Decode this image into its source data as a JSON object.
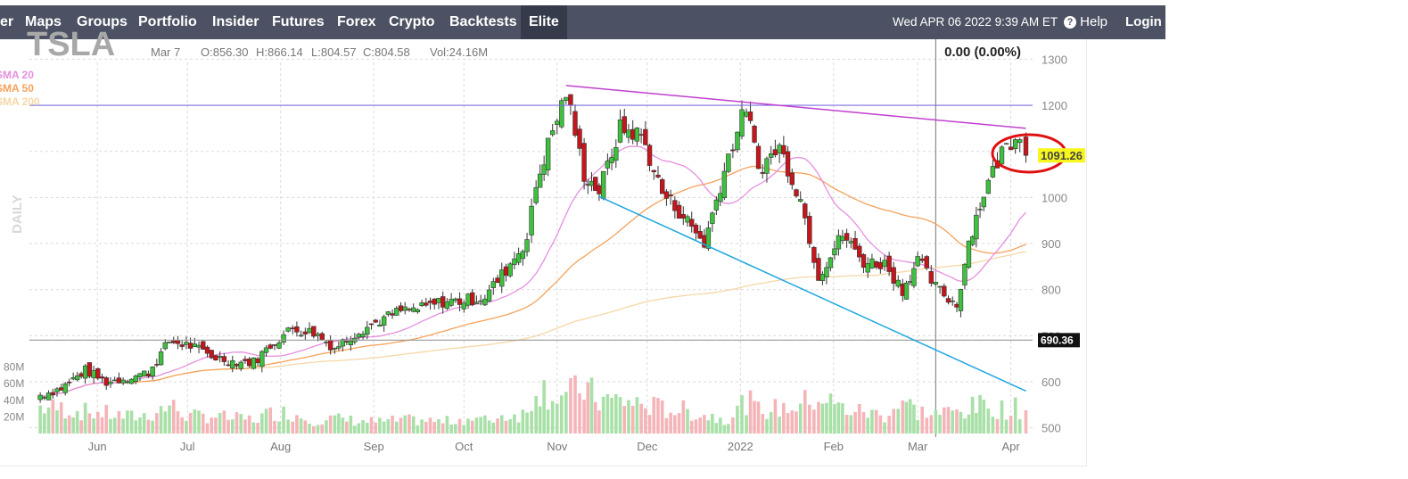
{
  "nav": {
    "items": [
      "er",
      "Maps",
      "Groups",
      "Portfolio",
      "Insider",
      "Futures",
      "Forex",
      "Crypto",
      "Backtests",
      "Elite"
    ],
    "active": "Elite",
    "datetime": "Wed APR 06 2022 9:39 AM ET",
    "help_icon": "?",
    "help_label": "Help",
    "login_label": "Login"
  },
  "colors": {
    "nav_bg": "#4c5263",
    "nav_active_bg": "#353b4a",
    "up_candle": "#3ec13e",
    "down_candle": "#c4161c",
    "sma20": "#e58fe0",
    "sma50": "#f5a15a",
    "sma200": "#f6d7a6",
    "resistance_line": "#7b6fe0",
    "wedge_top": "#c040d0",
    "wedge_bottom": "#1da6e0",
    "support_line": "#999999",
    "highlight_circle": "#e01010",
    "last_price_bg": "#f7f71e",
    "level_label_bg": "#111111"
  },
  "chart_data": {
    "type": "candlestick",
    "ticker": "TSLA",
    "info": {
      "date": "Mar 7",
      "open": "O:856.30",
      "high": "H:866.14",
      "low": "L:804.57",
      "close": "C:804.58",
      "volume": "Vol:24.16M"
    },
    "change": "0.00 (0.00%)",
    "timeframe_label": "DAILY",
    "legend": [
      "SMA 20",
      "SMA 50",
      "SMA 200"
    ],
    "x_tick_labels": [
      "Jun",
      "Jul",
      "Aug",
      "Sep",
      "Oct",
      "Nov",
      "Dec",
      "2022",
      "Feb",
      "Mar",
      "Apr"
    ],
    "y_ticks": [
      500,
      600,
      700,
      800,
      900,
      1000,
      1100,
      1200,
      1300
    ],
    "y_tick_labels": [
      "500",
      "600",
      "",
      "800",
      "900",
      "1000",
      "",
      "1200",
      "1300"
    ],
    "ylim": [
      480,
      1325
    ],
    "volume_ticks": [
      "80M",
      "60M",
      "40M",
      "20M"
    ],
    "volume_tick_values": [
      80,
      60,
      40,
      20
    ],
    "volume_max": 100,
    "level_label": "690.36",
    "level_value": 690.36,
    "last_price_label": "1091.26",
    "last_price_value": 1091.26,
    "resistance_level": 1200,
    "wedge_top": {
      "start": [
        "2021-11-04",
        1243
      ],
      "end": [
        "2022-04-06",
        1150
      ]
    },
    "wedge_bottom": {
      "start": [
        "2021-11-15",
        1002
      ],
      "end": [
        "2022-04-06",
        580
      ]
    },
    "grid": true,
    "anchors": [
      [
        "2021-05-13",
        571,
        32
      ],
      [
        "2021-05-20",
        586,
        30
      ],
      [
        "2021-05-28",
        625,
        26
      ],
      [
        "2021-06-04",
        599,
        24
      ],
      [
        "2021-06-11",
        609,
        20
      ],
      [
        "2021-06-18",
        620,
        22
      ],
      [
        "2021-06-25",
        688,
        34
      ],
      [
        "2021-07-02",
        678,
        20
      ],
      [
        "2021-07-09",
        656,
        22
      ],
      [
        "2021-07-16",
        644,
        18
      ],
      [
        "2021-07-23",
        643,
        17
      ],
      [
        "2021-07-30",
        688,
        26
      ],
      [
        "2021-08-05",
        715,
        24
      ],
      [
        "2021-08-12",
        707,
        16
      ],
      [
        "2021-08-19",
        674,
        18
      ],
      [
        "2021-08-27",
        711,
        15
      ],
      [
        "2021-09-03",
        733,
        14
      ],
      [
        "2021-09-10",
        754,
        16
      ],
      [
        "2021-09-17",
        759,
        16
      ],
      [
        "2021-09-24",
        774,
        14
      ],
      [
        "2021-10-01",
        776,
        18
      ],
      [
        "2021-10-08",
        785,
        16
      ],
      [
        "2021-10-15",
        843,
        22
      ],
      [
        "2021-10-22",
        910,
        24
      ],
      [
        "2021-10-25",
        1025,
        60
      ],
      [
        "2021-10-29",
        1115,
        50
      ],
      [
        "2021-11-04",
        1229,
        45
      ],
      [
        "2021-11-10",
        1050,
        55
      ],
      [
        "2021-11-15",
        1014,
        40
      ],
      [
        "2021-11-22",
        1150,
        40
      ],
      [
        "2021-11-29",
        1135,
        35
      ],
      [
        "2021-12-06",
        1010,
        30
      ],
      [
        "2021-12-13",
        960,
        28
      ],
      [
        "2021-12-20",
        900,
        22
      ],
      [
        "2021-12-28",
        1090,
        18
      ],
      [
        "2022-01-03",
        1199,
        40
      ],
      [
        "2022-01-07",
        1060,
        28
      ],
      [
        "2022-01-14",
        1110,
        30
      ],
      [
        "2022-01-21",
        996,
        35
      ],
      [
        "2022-01-27",
        830,
        45
      ],
      [
        "2022-02-04",
        920,
        30
      ],
      [
        "2022-02-11",
        860,
        26
      ],
      [
        "2022-02-18",
        856,
        22
      ],
      [
        "2022-02-24",
        800,
        40
      ],
      [
        "2022-03-01",
        864,
        26
      ],
      [
        "2022-03-07",
        804.58,
        24.16
      ],
      [
        "2022-03-14",
        766,
        26
      ],
      [
        "2022-03-18",
        905,
        30
      ],
      [
        "2022-03-23",
        1010,
        34
      ],
      [
        "2022-03-29",
        1100,
        30
      ],
      [
        "2022-04-04",
        1145,
        30
      ],
      [
        "2022-04-06",
        1091.26,
        28
      ]
    ]
  }
}
